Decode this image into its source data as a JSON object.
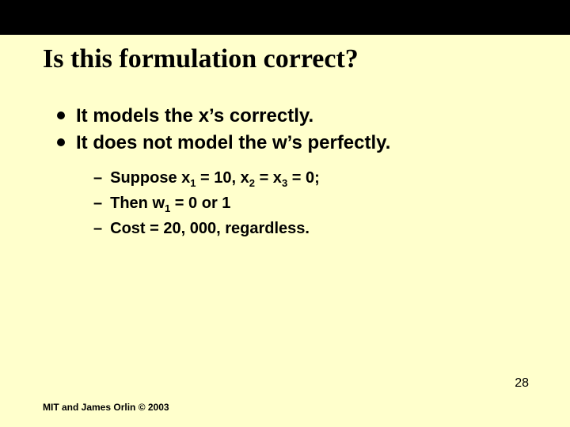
{
  "colors": {
    "background": "#ffffcc",
    "topbar": "#000000",
    "text": "#000000"
  },
  "title": {
    "text": "Is this formulation correct?",
    "font_family": "Times New Roman",
    "font_size_pt": 34,
    "font_weight": "bold"
  },
  "bullets": {
    "font_size_pt": 24,
    "font_weight": "bold",
    "items": [
      "It models the x’s correctly.",
      "It does not model the w’s perfectly."
    ]
  },
  "sub_bullets": {
    "font_size_pt": 20,
    "font_weight": "bold",
    "items": [
      {
        "prefix": "Suppose x",
        "sub1": "1",
        "mid1": " = 10, x",
        "sub2": "2",
        "mid2": " = x",
        "sub3": "3",
        "tail": " = 0;"
      },
      {
        "prefix": "Then w",
        "sub1": "1",
        "tail": " = 0 or 1"
      },
      {
        "plain": "Cost = 20, 000, regardless."
      }
    ]
  },
  "footer": "MIT and James Orlin © 2003",
  "page_number": "28"
}
